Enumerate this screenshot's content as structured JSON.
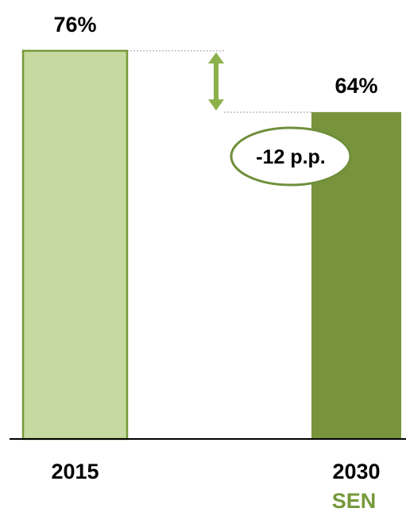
{
  "chart_data": {
    "type": "bar",
    "categories": [
      "2015",
      "2030"
    ],
    "category_sublabels": [
      "",
      "SEN"
    ],
    "values": [
      76,
      64
    ],
    "value_labels": [
      "76%",
      "64%"
    ],
    "ylim": [
      0,
      76
    ],
    "grid": false,
    "legend": "none",
    "annotation": {
      "label": "-12 p.p.",
      "from_category": "2015",
      "to_category": "2030"
    }
  },
  "colors": {
    "bar_2015_fill": "#c5d9a1",
    "bar_2015_border": "#77993a",
    "bar_2030_fill": "#77933c",
    "arrow": "#8cb14a",
    "ellipse_border": "#6f8f3a",
    "sublabel": "#77993a",
    "text": "#000000"
  }
}
